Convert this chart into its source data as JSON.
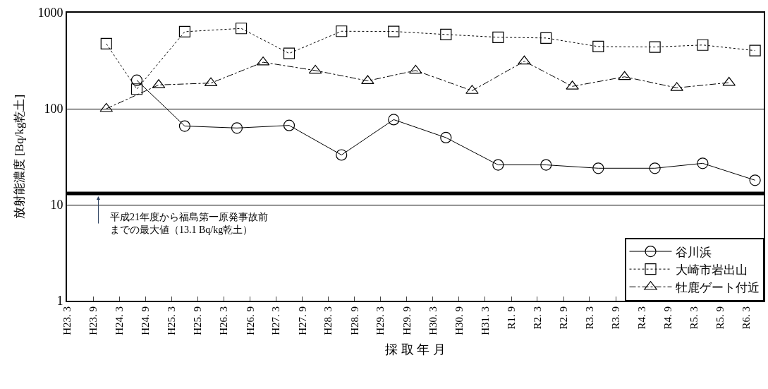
{
  "chart_data": {
    "type": "line",
    "xlabel": "採 取 年 月",
    "ylabel": "放射能濃度 [Bq/kg乾土]",
    "log": "y",
    "grid": "y",
    "legend": "bottom right",
    "ylim": [
      1,
      1000
    ],
    "yticks": [
      1,
      10,
      100,
      1000
    ],
    "xlim": [
      "2011-03",
      "2024-07"
    ],
    "xticks": [
      {
        "value": "2011-03",
        "label": "H23. 3"
      },
      {
        "value": "2011-09",
        "label": "H23. 9"
      },
      {
        "value": "2012-03",
        "label": "H24. 3"
      },
      {
        "value": "2012-09",
        "label": "H24. 9"
      },
      {
        "value": "2013-03",
        "label": "H25. 3"
      },
      {
        "value": "2013-09",
        "label": "H25. 9"
      },
      {
        "value": "2014-03",
        "label": "H26. 3"
      },
      {
        "value": "2014-09",
        "label": "H26. 9"
      },
      {
        "value": "2015-03",
        "label": "H27. 3"
      },
      {
        "value": "2015-09",
        "label": "H27. 9"
      },
      {
        "value": "2016-03",
        "label": "H28. 3"
      },
      {
        "value": "2016-09",
        "label": "H28. 9"
      },
      {
        "value": "2017-03",
        "label": "H29. 3"
      },
      {
        "value": "2017-09",
        "label": "H29. 9"
      },
      {
        "value": "2018-03",
        "label": "H30. 3"
      },
      {
        "value": "2018-09",
        "label": "H30. 9"
      },
      {
        "value": "2019-03",
        "label": "H31. 3"
      },
      {
        "value": "2019-09",
        "label": "R1. 9"
      },
      {
        "value": "2020-03",
        "label": "R2. 3"
      },
      {
        "value": "2020-09",
        "label": "R2. 9"
      },
      {
        "value": "2021-03",
        "label": "R3. 3"
      },
      {
        "value": "2021-09",
        "label": "R3. 9"
      },
      {
        "value": "2022-03",
        "label": "R4. 3"
      },
      {
        "value": "2022-09",
        "label": "R4. 9"
      },
      {
        "value": "2023-03",
        "label": "R5. 3"
      },
      {
        "value": "2023-09",
        "label": "R5. 9"
      },
      {
        "value": "2024-03",
        "label": "R6. 3"
      }
    ],
    "ref_lines": [
      {
        "axis": "y",
        "value": 13.1,
        "label": "平成21年度から福島第一原発事故前までの最大値（13.1 Bq/kg乾土）",
        "color": "#000000",
        "line_style": "solid"
      }
    ],
    "series": [
      {
        "name": "谷川浜",
        "color": "#000000",
        "marker": "circle",
        "line_style": "solid",
        "x": [
          "2012-07",
          "2013-06",
          "2014-06",
          "2015-06",
          "2016-06",
          "2017-06",
          "2018-06",
          "2019-06",
          "2020-05",
          "2021-05",
          "2022-06",
          "2023-05",
          "2024-05"
        ],
        "values": [
          198,
          66,
          63,
          67,
          33,
          77,
          50,
          26,
          26,
          24,
          24,
          27,
          18
        ]
      },
      {
        "name": "大崎市岩出山",
        "color": "#000000",
        "marker": "square",
        "line_style": "dotted",
        "x": [
          "2011-12",
          "2012-07",
          "2013-06",
          "2014-07",
          "2015-06",
          "2016-06",
          "2017-06",
          "2018-06",
          "2019-06",
          "2020-05",
          "2021-05",
          "2022-06",
          "2023-05",
          "2024-05"
        ],
        "values": [
          475,
          160,
          634,
          686,
          377,
          641,
          638,
          593,
          555,
          545,
          444,
          439,
          461,
          403
        ]
      },
      {
        "name": "牡鹿ゲート付近",
        "color": "#000000",
        "marker": "triangle",
        "line_style": "dashed",
        "x": [
          "2011-12",
          "2012-12",
          "2013-12",
          "2014-12",
          "2015-12",
          "2016-12",
          "2017-11",
          "2018-12",
          "2019-12",
          "2020-11",
          "2021-11",
          "2022-11",
          "2023-11"
        ],
        "values": [
          100,
          177,
          185,
          305,
          250,
          195,
          250,
          154,
          312,
          171,
          215,
          165,
          187
        ]
      }
    ]
  }
}
